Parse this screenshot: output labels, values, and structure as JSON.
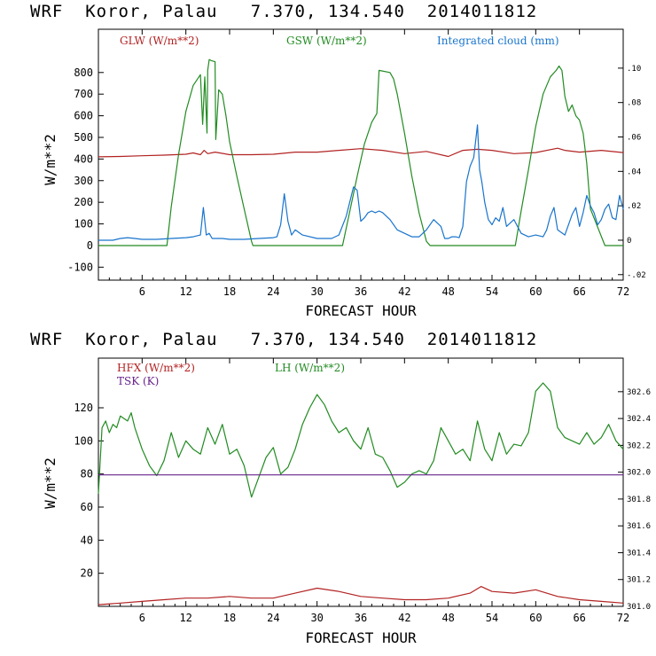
{
  "chart_data": [
    {
      "type": "line",
      "title": "WRF  Koror, Palau   7.370, 134.540  2014011812",
      "xlabel": "FORECAST HOUR",
      "ylabel": "W/m**2",
      "xlim": [
        0,
        72
      ],
      "ylim": [
        -160,
        1000
      ],
      "xticks": [
        6,
        12,
        18,
        24,
        30,
        36,
        42,
        48,
        54,
        60,
        66,
        72
      ],
      "yticks": [
        -100,
        0,
        100,
        200,
        300,
        400,
        500,
        600,
        700,
        800
      ],
      "y2lim": [
        -0.0232,
        0.1226
      ],
      "y2ticks": [
        -0.02,
        0.0,
        0.02,
        0.04,
        0.06,
        0.08,
        0.1
      ],
      "y2ticklabels": [
        "-.02",
        "0",
        ".02",
        ".04",
        ".06",
        ".08",
        ".10"
      ],
      "series": [
        {
          "name": "GLW (W/m**2)",
          "axis": "left",
          "color": "#b22222",
          "x": [
            0,
            3,
            6,
            9,
            12,
            13,
            14,
            14.5,
            15,
            16,
            18,
            21,
            24,
            27,
            30,
            33,
            36,
            39,
            42,
            45,
            48,
            50,
            52,
            54,
            57,
            60,
            63,
            64,
            66,
            69,
            72
          ],
          "y": [
            410,
            412,
            415,
            418,
            422,
            428,
            420,
            440,
            425,
            432,
            420,
            420,
            422,
            432,
            432,
            440,
            448,
            440,
            425,
            435,
            412,
            440,
            445,
            440,
            425,
            430,
            450,
            440,
            432,
            440,
            430
          ]
        },
        {
          "name": "GSW (W/m**2)",
          "axis": "left",
          "color": "#228b22",
          "x": [
            0,
            9.4,
            10,
            11,
            12,
            13,
            14,
            14.3,
            14.6,
            14.9,
            15,
            15.2,
            15.5,
            16,
            16.1,
            16.5,
            17,
            17.5,
            18,
            19,
            20,
            21,
            21.2,
            33.5,
            34.5,
            35.5,
            36.5,
            37.5,
            38.2,
            38.5,
            40,
            40.5,
            41,
            42,
            43,
            44,
            45,
            45.5,
            57.2,
            58,
            59,
            60,
            61,
            62,
            62.8,
            63.2,
            63.6,
            64,
            64.5,
            65,
            65.5,
            66,
            66.5,
            67,
            67.5,
            69.5,
            72
          ],
          "y": [
            0,
            0,
            180,
            420,
            620,
            740,
            790,
            560,
            780,
            520,
            810,
            860,
            855,
            850,
            490,
            720,
            700,
            600,
            480,
            320,
            170,
            20,
            0,
            0,
            160,
            320,
            470,
            570,
            610,
            810,
            800,
            770,
            700,
            520,
            320,
            150,
            20,
            0,
            0,
            160,
            350,
            550,
            700,
            780,
            810,
            830,
            810,
            690,
            620,
            650,
            600,
            580,
            520,
            380,
            170,
            0,
            0
          ]
        },
        {
          "name": "Integrated cloud (mm)",
          "axis": "right",
          "color": "#1874cd",
          "x": [
            0,
            2,
            3,
            4,
            5,
            6,
            8,
            10,
            12,
            13,
            14,
            14.4,
            14.8,
            15.2,
            15.6,
            16,
            17,
            18,
            20,
            22,
            24,
            24.5,
            25,
            25.5,
            26,
            26.5,
            27,
            28,
            30,
            31,
            32,
            33,
            34,
            35,
            35.5,
            36,
            36.5,
            37,
            37.5,
            38,
            38.5,
            39,
            40,
            41,
            42,
            43,
            44,
            45,
            46,
            47,
            47.5,
            48,
            48.5,
            49,
            49.5,
            50,
            50.5,
            51,
            51.5,
            52,
            52.3,
            52.6,
            53,
            53.5,
            54,
            54.5,
            55,
            55.5,
            56,
            57,
            58,
            59,
            60,
            61,
            61.5,
            62,
            62.5,
            63,
            64,
            65,
            65.5,
            66,
            66.5,
            67,
            67.5,
            68,
            68.5,
            69,
            69.5,
            70,
            70.5,
            71,
            71.5,
            72
          ],
          "y": [
            0,
            0,
            0.001,
            0.0015,
            0.001,
            0.0005,
            0.0005,
            0.001,
            0.0015,
            0.002,
            0.003,
            0.019,
            0.003,
            0.004,
            0.001,
            0.001,
            0.001,
            0.0005,
            0.0005,
            0.001,
            0.0015,
            0.002,
            0.009,
            0.027,
            0.011,
            0.003,
            0.006,
            0.003,
            0.001,
            0.001,
            0.001,
            0.003,
            0.014,
            0.031,
            0.029,
            0.011,
            0.013,
            0.016,
            0.017,
            0.016,
            0.017,
            0.016,
            0.012,
            0.006,
            0.004,
            0.002,
            0.002,
            0.006,
            0.012,
            0.008,
            0.001,
            0.001,
            0.002,
            0.002,
            0.0015,
            0.008,
            0.034,
            0.043,
            0.048,
            0.067,
            0.041,
            0.034,
            0.022,
            0.012,
            0.009,
            0.013,
            0.011,
            0.019,
            0.008,
            0.012,
            0.004,
            0.002,
            0.003,
            0.002,
            0.006,
            0.014,
            0.019,
            0.006,
            0.003,
            0.015,
            0.019,
            0.008,
            0.016,
            0.026,
            0.02,
            0.016,
            0.009,
            0.012,
            0.018,
            0.021,
            0.013,
            0.012,
            0.026,
            0.018
          ]
        }
      ],
      "legend_position": "top",
      "grid": false
    },
    {
      "type": "line",
      "title": "WRF  Koror, Palau   7.370, 134.540  2014011812",
      "xlabel": "FORECAST HOUR",
      "ylabel": "W/m**2",
      "xlim": [
        0,
        72
      ],
      "ylim": [
        0,
        150
      ],
      "xticks": [
        6,
        12,
        18,
        24,
        30,
        36,
        42,
        48,
        54,
        60,
        66,
        72
      ],
      "yticks": [
        20,
        40,
        60,
        80,
        100,
        120
      ],
      "y2lim": [
        301.0,
        302.85
      ],
      "y2ticks": [
        301.0,
        301.2,
        301.4,
        301.6,
        301.8,
        302.0,
        302.2,
        302.4,
        302.6
      ],
      "y2ticklabels": [
        "301.0",
        "301.2",
        "301.4",
        "301.6",
        "301.8",
        "302.0",
        "302.2",
        "302.4",
        "302.6"
      ],
      "series": [
        {
          "name": "HFX (W/m**2)",
          "axis": "left",
          "color": "#b22222",
          "x": [
            0,
            3,
            6,
            9,
            12,
            15,
            18,
            21,
            24,
            27,
            30,
            33,
            36,
            39,
            42,
            45,
            48,
            51,
            52.5,
            54,
            57,
            60,
            63,
            66,
            69,
            72
          ],
          "y": [
            1,
            2,
            3,
            4,
            5,
            5,
            6,
            5,
            5,
            8,
            11,
            9,
            6,
            5,
            4,
            4,
            5,
            8,
            12,
            9,
            8,
            10,
            6,
            4,
            3,
            2
          ]
        },
        {
          "name": "LH (W/m**2)",
          "axis": "left",
          "color": "#228b22",
          "x": [
            0,
            0.5,
            1,
            1.5,
            2,
            2.5,
            3,
            4,
            4.5,
            5,
            6,
            7,
            8,
            9,
            10,
            11,
            12,
            13,
            14,
            15,
            16,
            17,
            18,
            19,
            20,
            21,
            22,
            23,
            24,
            25,
            26,
            27,
            28,
            29,
            30,
            31,
            32,
            33,
            34,
            35,
            36,
            37,
            38,
            39,
            40,
            41,
            42,
            43,
            44,
            45,
            46,
            47,
            48,
            49,
            50,
            51,
            52,
            53,
            54,
            55,
            56,
            57,
            58,
            59,
            60,
            61,
            62,
            63,
            64,
            65,
            66,
            67,
            68,
            69,
            70,
            71,
            72
          ],
          "y": [
            68,
            108,
            112,
            105,
            110,
            108,
            115,
            112,
            117,
            108,
            95,
            85,
            79,
            88,
            105,
            90,
            100,
            95,
            92,
            108,
            98,
            110,
            92,
            95,
            85,
            66,
            78,
            90,
            96,
            80,
            84,
            95,
            110,
            120,
            128,
            122,
            112,
            105,
            108,
            100,
            95,
            108,
            92,
            90,
            82,
            72,
            75,
            80,
            82,
            80,
            88,
            108,
            100,
            92,
            95,
            88,
            112,
            95,
            88,
            105,
            92,
            98,
            97,
            105,
            130,
            135,
            130,
            108,
            102,
            100,
            98,
            105,
            98,
            102,
            110,
            100,
            95
          ]
        },
        {
          "name": "TSK (K)",
          "axis": "right",
          "color": "#68228b",
          "x": [
            0,
            72
          ],
          "y": [
            301.98,
            301.98
          ]
        }
      ],
      "legend_position": "top",
      "grid": false
    }
  ]
}
